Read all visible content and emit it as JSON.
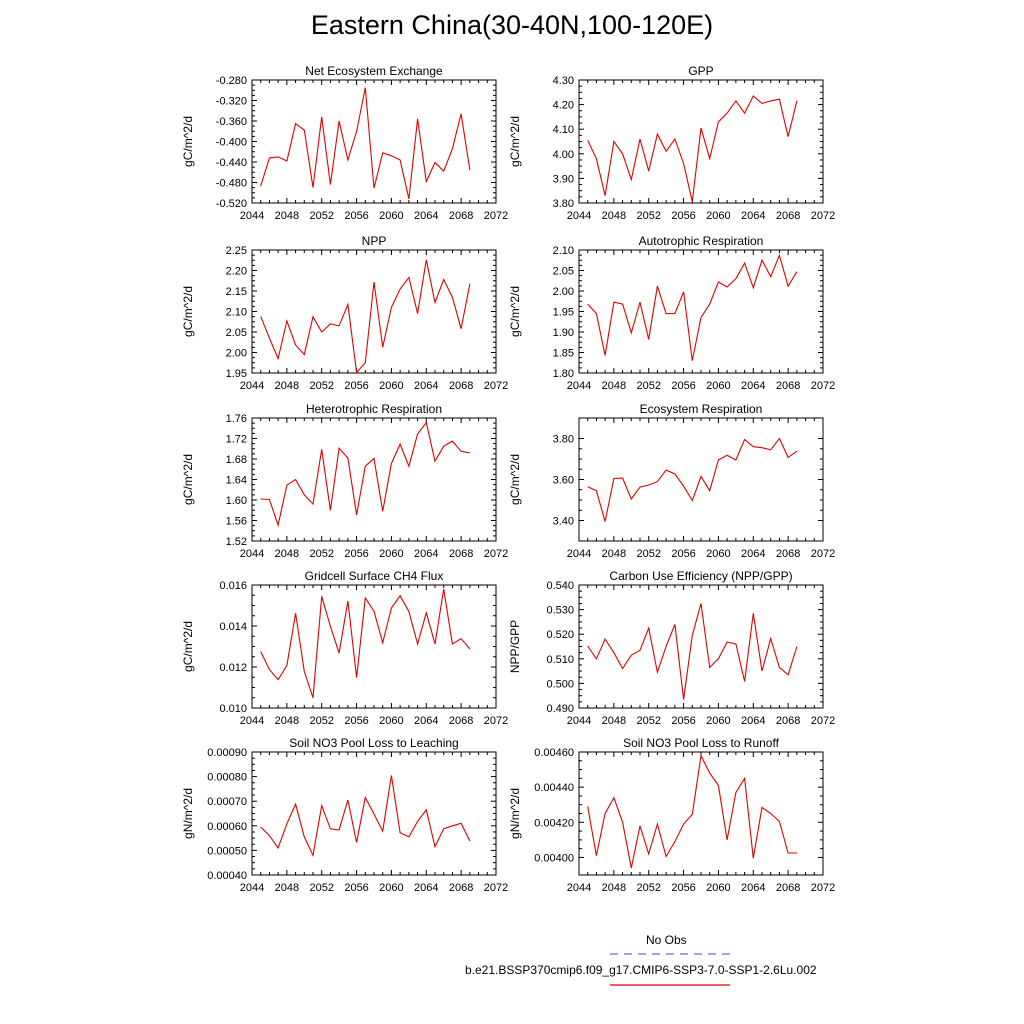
{
  "title": "Eastern China(30-40N,100-120E)",
  "legend": {
    "entries": [
      {
        "label": "No Obs",
        "color": "#6a6ae0",
        "dash": true
      },
      {
        "label": "b.e21.BSSP370cmip6.f09_g17.CMIP6-SSP3-7.0-SSP1-2.6Lu.002",
        "color": "#e00000",
        "dash": false
      }
    ]
  },
  "chart_data": [
    {
      "type": "line",
      "title": "Net Ecosystem Exchange",
      "ylabel": "gC/m^2/d",
      "xlim": [
        2044,
        2072
      ],
      "xticks": [
        2044,
        2048,
        2052,
        2056,
        2060,
        2064,
        2068,
        2072
      ],
      "ylim": [
        -0.52,
        -0.28
      ],
      "yticks": [
        "-0.520",
        "-0.480",
        "-0.440",
        "-0.400",
        "-0.360",
        "-0.320",
        "-0.280"
      ],
      "x": [
        2045,
        2046,
        2047,
        2048,
        2049,
        2050,
        2051,
        2052,
        2053,
        2054,
        2055,
        2056,
        2057,
        2058,
        2059,
        2060,
        2061,
        2062,
        2063,
        2064,
        2065,
        2066,
        2067,
        2068,
        2069
      ],
      "series": [
        {
          "color": "#e00000",
          "values": [
            -0.487,
            -0.432,
            -0.43,
            -0.438,
            -0.365,
            -0.378,
            -0.49,
            -0.352,
            -0.484,
            -0.36,
            -0.436,
            -0.38,
            -0.295,
            -0.491,
            -0.422,
            -0.428,
            -0.436,
            -0.512,
            -0.356,
            -0.478,
            -0.441,
            -0.458,
            -0.414,
            -0.346,
            -0.456
          ]
        }
      ]
    },
    {
      "type": "line",
      "title": "GPP",
      "ylabel": "gC/m^2/d",
      "xlim": [
        2044,
        2072
      ],
      "xticks": [
        2044,
        2048,
        2052,
        2056,
        2060,
        2064,
        2068,
        2072
      ],
      "ylim": [
        3.8,
        4.3
      ],
      "yticks": [
        "3.80",
        "3.90",
        "4.00",
        "4.10",
        "4.20",
        "4.30"
      ],
      "x": [
        2045,
        2046,
        2047,
        2048,
        2049,
        2050,
        2051,
        2052,
        2053,
        2054,
        2055,
        2056,
        2057,
        2058,
        2059,
        2060,
        2061,
        2062,
        2063,
        2064,
        2065,
        2066,
        2067,
        2068,
        2069
      ],
      "series": [
        {
          "color": "#e00000",
          "values": [
            4.055,
            3.98,
            3.83,
            4.05,
            4.0,
            3.895,
            4.06,
            3.93,
            4.08,
            4.01,
            4.06,
            3.96,
            3.805,
            4.105,
            3.98,
            4.13,
            4.165,
            4.215,
            4.165,
            4.235,
            4.205,
            4.215,
            4.222,
            4.07,
            4.215
          ]
        }
      ]
    },
    {
      "type": "line",
      "title": "NPP",
      "ylabel": "gC/m^2/d",
      "xlim": [
        2044,
        2072
      ],
      "xticks": [
        2044,
        2048,
        2052,
        2056,
        2060,
        2064,
        2068,
        2072
      ],
      "ylim": [
        1.95,
        2.25
      ],
      "yticks": [
        "1.95",
        "2.00",
        "2.05",
        "2.10",
        "2.15",
        "2.20",
        "2.25"
      ],
      "x": [
        2045,
        2046,
        2047,
        2048,
        2049,
        2050,
        2051,
        2052,
        2053,
        2054,
        2055,
        2056,
        2057,
        2058,
        2059,
        2060,
        2061,
        2062,
        2063,
        2064,
        2065,
        2066,
        2067,
        2068,
        2069
      ],
      "series": [
        {
          "color": "#e00000",
          "values": [
            2.088,
            2.035,
            1.985,
            2.077,
            2.018,
            1.995,
            2.087,
            2.05,
            2.07,
            2.065,
            2.117,
            1.951,
            1.975,
            2.172,
            2.013,
            2.11,
            2.155,
            2.183,
            2.095,
            2.226,
            2.122,
            2.178,
            2.135,
            2.058,
            2.168
          ]
        }
      ]
    },
    {
      "type": "line",
      "title": "Autotrophic Respiration",
      "ylabel": "gC/m^2/d",
      "xlim": [
        2044,
        2072
      ],
      "xticks": [
        2044,
        2048,
        2052,
        2056,
        2060,
        2064,
        2068,
        2072
      ],
      "ylim": [
        1.8,
        2.1
      ],
      "yticks": [
        "1.80",
        "1.85",
        "1.90",
        "1.95",
        "2.00",
        "2.05",
        "2.10"
      ],
      "x": [
        2045,
        2046,
        2047,
        2048,
        2049,
        2050,
        2051,
        2052,
        2053,
        2054,
        2055,
        2056,
        2057,
        2058,
        2059,
        2060,
        2061,
        2062,
        2063,
        2064,
        2065,
        2066,
        2067,
        2068,
        2069
      ],
      "series": [
        {
          "color": "#e00000",
          "values": [
            1.968,
            1.945,
            1.843,
            1.973,
            1.968,
            1.898,
            1.973,
            1.882,
            2.012,
            1.945,
            1.945,
            1.998,
            1.83,
            1.935,
            1.968,
            2.022,
            2.01,
            2.03,
            2.068,
            2.008,
            2.075,
            2.035,
            2.087,
            2.012,
            2.047
          ]
        }
      ]
    },
    {
      "type": "line",
      "title": "Heterotrophic Respiration",
      "ylabel": "gC/m^2/d",
      "xlim": [
        2044,
        2072
      ],
      "xticks": [
        2044,
        2048,
        2052,
        2056,
        2060,
        2064,
        2068,
        2072
      ],
      "ylim": [
        1.52,
        1.76
      ],
      "yticks": [
        "1.52",
        "1.56",
        "1.60",
        "1.64",
        "1.68",
        "1.72",
        "1.76"
      ],
      "x": [
        2045,
        2046,
        2047,
        2048,
        2049,
        2050,
        2051,
        2052,
        2053,
        2054,
        2055,
        2056,
        2057,
        2058,
        2059,
        2060,
        2061,
        2062,
        2063,
        2064,
        2065,
        2066,
        2067,
        2068,
        2069
      ],
      "series": [
        {
          "color": "#e00000",
          "values": [
            1.602,
            1.601,
            1.551,
            1.629,
            1.64,
            1.61,
            1.592,
            1.699,
            1.58,
            1.701,
            1.682,
            1.571,
            1.666,
            1.681,
            1.578,
            1.671,
            1.709,
            1.666,
            1.729,
            1.751,
            1.676,
            1.705,
            1.715,
            1.695,
            1.692
          ]
        }
      ]
    },
    {
      "type": "line",
      "title": "Ecosystem Respiration",
      "ylabel": "gC/m^2/d",
      "xlim": [
        2044,
        2072
      ],
      "xticks": [
        2044,
        2048,
        2052,
        2056,
        2060,
        2064,
        2068,
        2072
      ],
      "ylim": [
        3.3,
        3.9
      ],
      "yticks": [
        "3.40",
        "3.60",
        "3.80"
      ],
      "x": [
        2045,
        2046,
        2047,
        2048,
        2049,
        2050,
        2051,
        2052,
        2053,
        2054,
        2055,
        2056,
        2057,
        2058,
        2059,
        2060,
        2061,
        2062,
        2063,
        2064,
        2065,
        2066,
        2067,
        2068,
        2069
      ],
      "series": [
        {
          "color": "#e00000",
          "values": [
            3.565,
            3.545,
            3.395,
            3.605,
            3.607,
            3.505,
            3.563,
            3.573,
            3.59,
            3.646,
            3.627,
            3.568,
            3.497,
            3.615,
            3.545,
            3.695,
            3.718,
            3.695,
            3.795,
            3.76,
            3.755,
            3.745,
            3.8,
            3.708,
            3.738
          ]
        }
      ]
    },
    {
      "type": "line",
      "title": "Gridcell Surface CH4 Flux",
      "ylabel": "gC/m^2/d",
      "xlim": [
        2044,
        2072
      ],
      "xticks": [
        2044,
        2048,
        2052,
        2056,
        2060,
        2064,
        2068,
        2072
      ],
      "ylim": [
        0.01,
        0.016
      ],
      "yticks": [
        "0.010",
        "0.012",
        "0.014",
        "0.016"
      ],
      "x": [
        2045,
        2046,
        2047,
        2048,
        2049,
        2050,
        2051,
        2052,
        2053,
        2054,
        2055,
        2056,
        2057,
        2058,
        2059,
        2060,
        2061,
        2062,
        2063,
        2064,
        2065,
        2066,
        2067,
        2068,
        2069
      ],
      "series": [
        {
          "color": "#e00000",
          "values": [
            0.01275,
            0.01188,
            0.01138,
            0.01208,
            0.01462,
            0.01178,
            0.0105,
            0.01545,
            0.01398,
            0.01268,
            0.01522,
            0.01148,
            0.01537,
            0.01472,
            0.01318,
            0.01488,
            0.01548,
            0.0147,
            0.01312,
            0.01465,
            0.01312,
            0.0158,
            0.01312,
            0.01338,
            0.01288
          ]
        }
      ]
    },
    {
      "type": "line",
      "title": "Carbon Use Efficiency (NPP/GPP)",
      "ylabel": "NPP/GPP",
      "xlim": [
        2044,
        2072
      ],
      "xticks": [
        2044,
        2048,
        2052,
        2056,
        2060,
        2064,
        2068,
        2072
      ],
      "ylim": [
        0.49,
        0.54
      ],
      "yticks": [
        "0.490",
        "0.500",
        "0.510",
        "0.520",
        "0.530",
        "0.540"
      ],
      "x": [
        2045,
        2046,
        2047,
        2048,
        2049,
        2050,
        2051,
        2052,
        2053,
        2054,
        2055,
        2056,
        2057,
        2058,
        2059,
        2060,
        2061,
        2062,
        2063,
        2064,
        2065,
        2066,
        2067,
        2068,
        2069
      ],
      "series": [
        {
          "color": "#e00000",
          "values": [
            0.5152,
            0.51,
            0.518,
            0.5125,
            0.506,
            0.5115,
            0.5135,
            0.5225,
            0.5045,
            0.515,
            0.524,
            0.4935,
            0.5195,
            0.5325,
            0.5065,
            0.51,
            0.5168,
            0.516,
            0.5008,
            0.5285,
            0.505,
            0.5182,
            0.5065,
            0.5035,
            0.515
          ]
        }
      ]
    },
    {
      "type": "line",
      "title": "Soil NO3 Pool Loss to Leaching",
      "ylabel": "gN/m^2/d",
      "xlim": [
        2044,
        2072
      ],
      "xticks": [
        2044,
        2048,
        2052,
        2056,
        2060,
        2064,
        2068,
        2072
      ],
      "ylim": [
        0.0004,
        0.0009
      ],
      "yticks": [
        "0.00040",
        "0.00050",
        "0.00060",
        "0.00070",
        "0.00080",
        "0.00090"
      ],
      "x": [
        2045,
        2046,
        2047,
        2048,
        2049,
        2050,
        2051,
        2052,
        2053,
        2054,
        2055,
        2056,
        2057,
        2058,
        2059,
        2060,
        2061,
        2062,
        2063,
        2064,
        2065,
        2066,
        2067,
        2068,
        2069
      ],
      "series": [
        {
          "color": "#e00000",
          "values": [
            0.000595,
            0.00056,
            0.00051,
            0.000608,
            0.000688,
            0.000555,
            0.00048,
            0.000682,
            0.000588,
            0.000583,
            0.000705,
            0.000532,
            0.000715,
            0.000648,
            0.000578,
            0.000805,
            0.000572,
            0.000555,
            0.000618,
            0.000665,
            0.000515,
            0.000588,
            0.0006,
            0.00061,
            0.000538
          ]
        }
      ]
    },
    {
      "type": "line",
      "title": "Soil NO3 Pool Loss to Runoff",
      "ylabel": "gN/m^2/d",
      "xlim": [
        2044,
        2072
      ],
      "xticks": [
        2044,
        2048,
        2052,
        2056,
        2060,
        2064,
        2068,
        2072
      ],
      "ylim": [
        0.0039,
        0.0046
      ],
      "yticks": [
        "0.00400",
        "0.00420",
        "0.00440",
        "0.00460"
      ],
      "x": [
        2045,
        2046,
        2047,
        2048,
        2049,
        2050,
        2051,
        2052,
        2053,
        2054,
        2055,
        2056,
        2057,
        2058,
        2059,
        2060,
        2061,
        2062,
        2063,
        2064,
        2065,
        2066,
        2067,
        2068,
        2069
      ],
      "series": [
        {
          "color": "#e00000",
          "values": [
            0.00429,
            0.00401,
            0.00425,
            0.00434,
            0.0042,
            0.00394,
            0.00418,
            0.00402,
            0.00419,
            0.004005,
            0.00409,
            0.00419,
            0.004245,
            0.00458,
            0.00448,
            0.00441,
            0.0041,
            0.00437,
            0.00445,
            0.003995,
            0.004285,
            0.00425,
            0.004205,
            0.004025,
            0.004025
          ]
        }
      ]
    }
  ]
}
